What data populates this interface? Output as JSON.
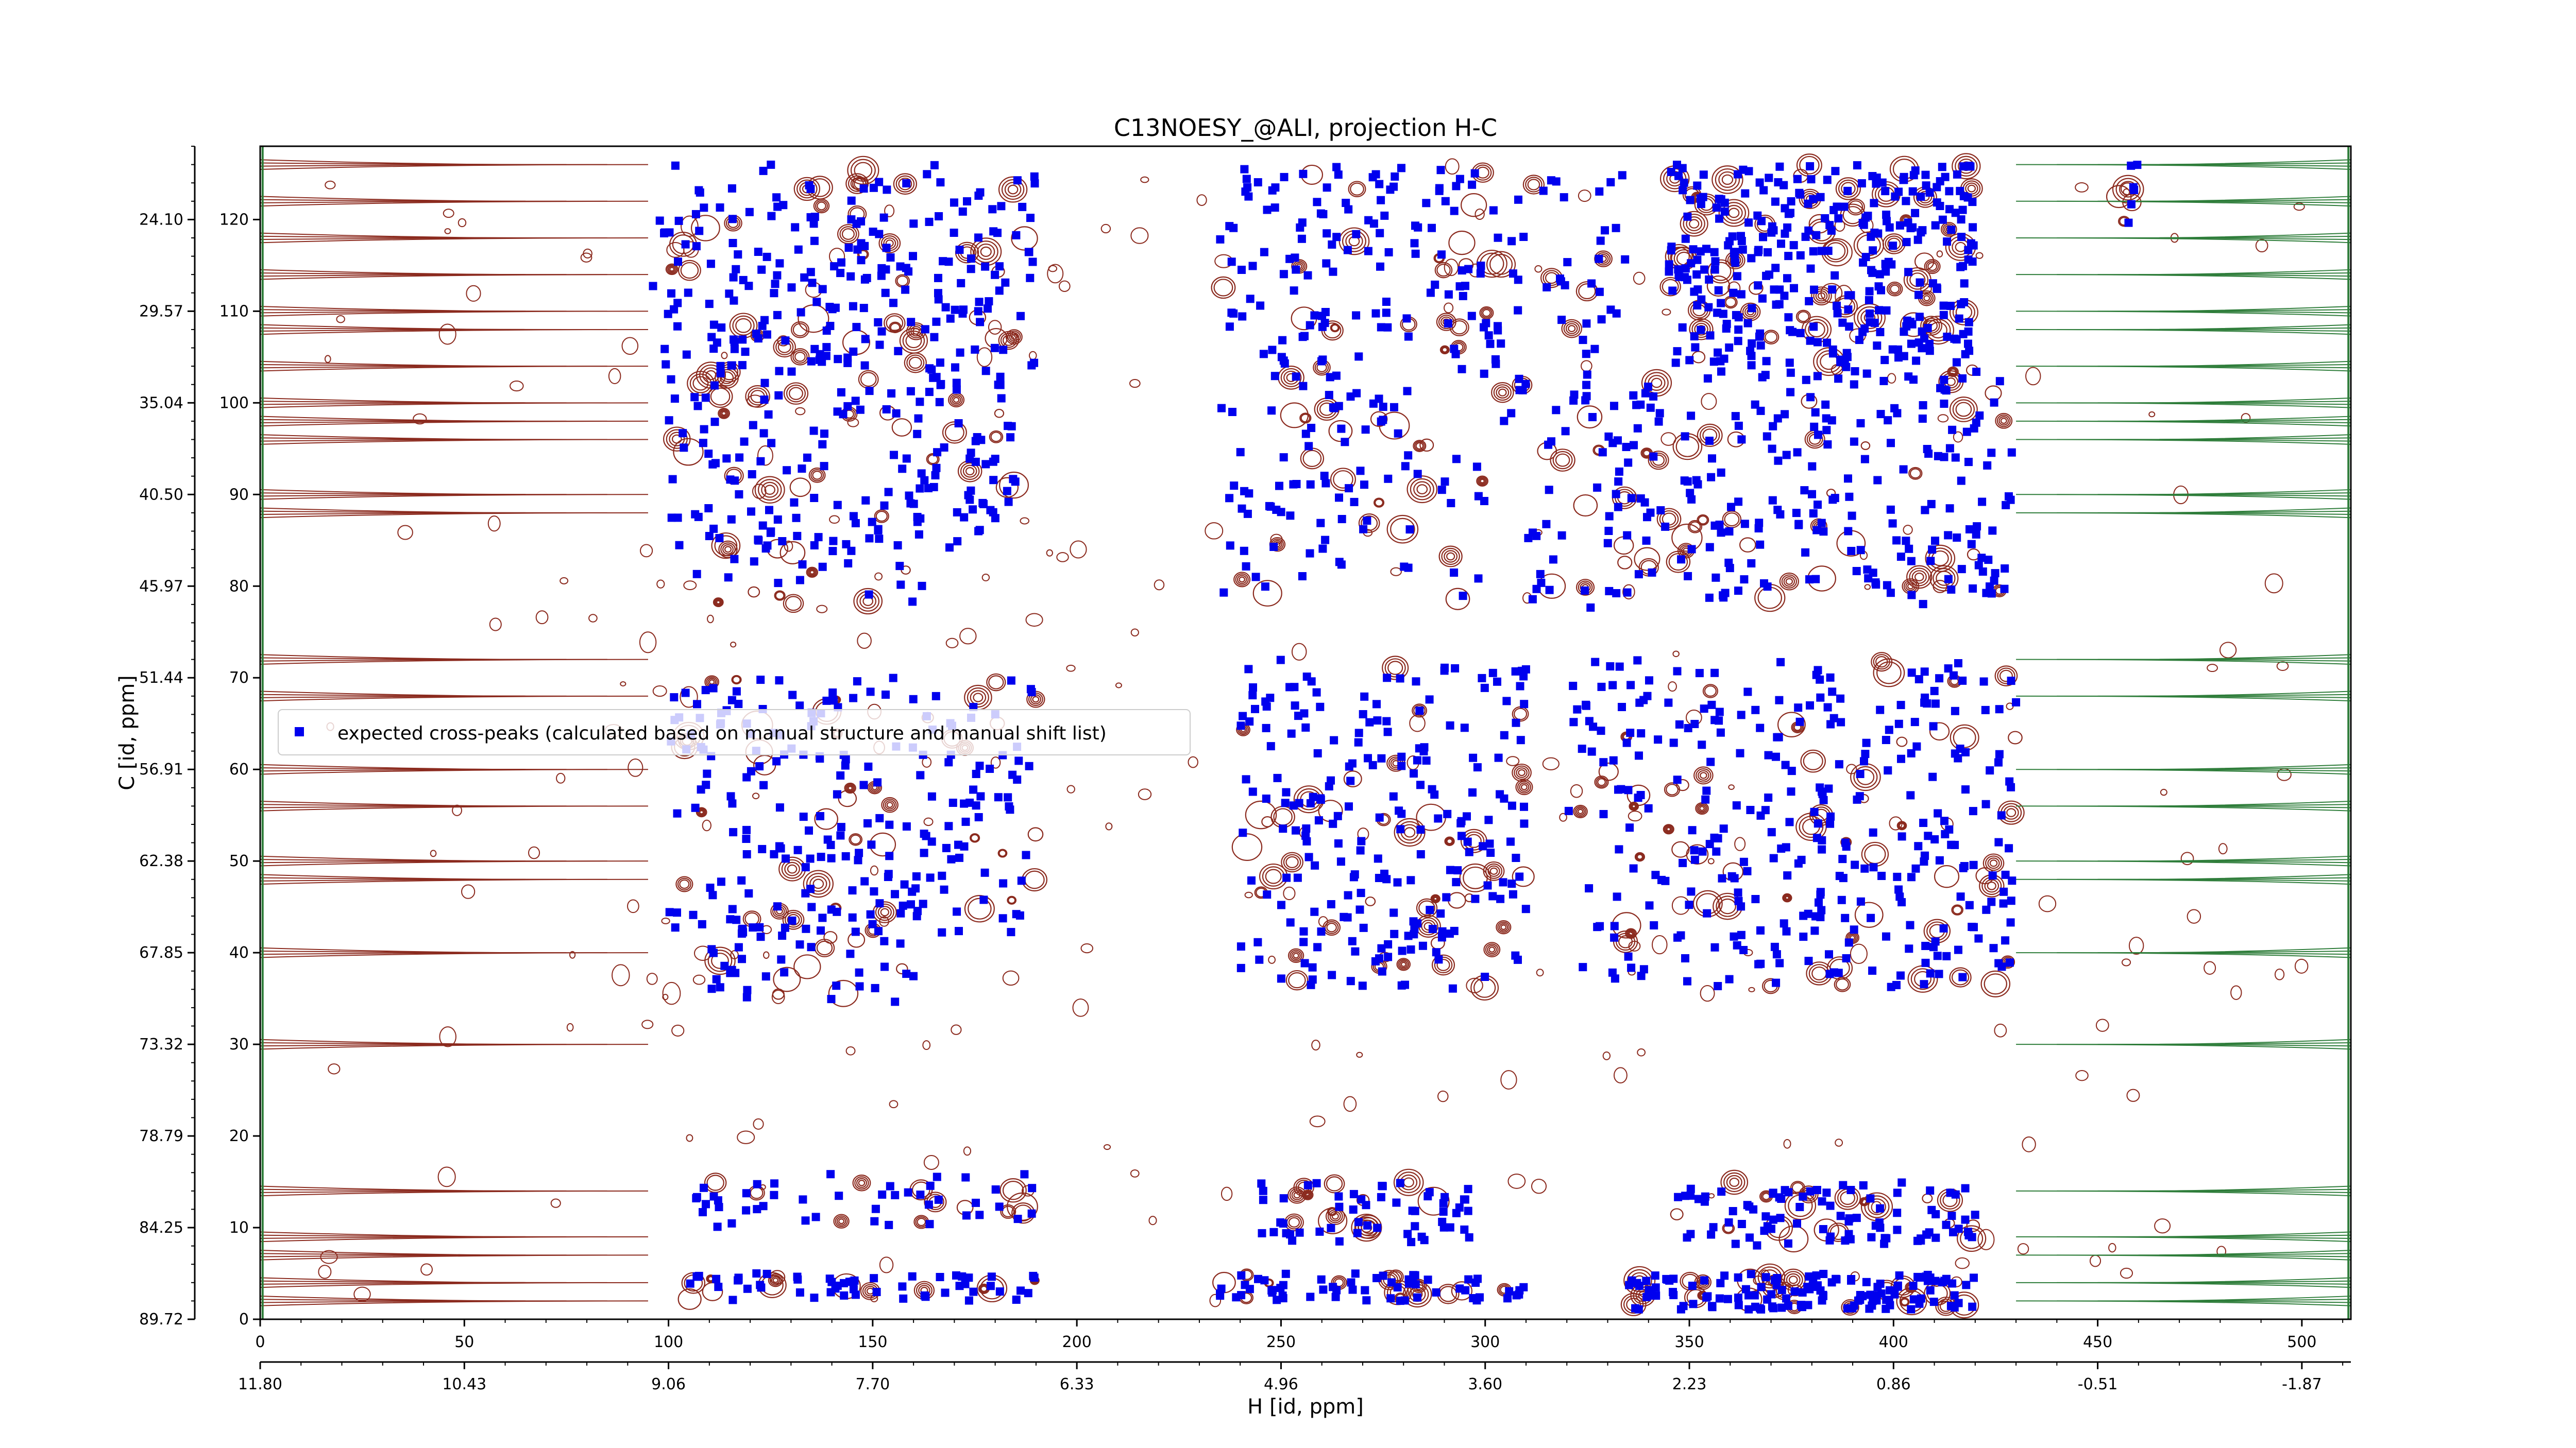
{
  "chart_data": {
    "type": "scatter",
    "title": "C13NOESY_@ALI, projection H-C",
    "xlabel": "H [id, ppm]",
    "ylabel": "C [id, ppm]",
    "x_index_range": [
      0,
      512
    ],
    "y_index_range": [
      0,
      128
    ],
    "x_ticks": [
      0,
      50,
      100,
      150,
      200,
      250,
      300,
      350,
      400,
      450,
      500
    ],
    "y_ticks": [
      0,
      10,
      20,
      30,
      40,
      50,
      60,
      70,
      80,
      90,
      100,
      110,
      120
    ],
    "h_ppm_ticks": [
      "11.80",
      "10.43",
      "9.06",
      "7.70",
      "6.33",
      "4.96",
      "3.60",
      "2.23",
      "0.86",
      "-0.51",
      "-1.87"
    ],
    "c_ppm_ticks": [
      "89.72",
      "84.25",
      "78.79",
      "73.32",
      "67.85",
      "62.38",
      "56.91",
      "51.44",
      "45.97",
      "40.50",
      "35.04",
      "29.57",
      "24.10"
    ],
    "legend": {
      "label": "expected cross-peaks (calculated based on manual structure and manual shift list)",
      "location": "center-left"
    },
    "colors": {
      "peaks": "#0000ee",
      "contour_positive": "#8b2a1e",
      "contour_negative": "#2e7d3a"
    },
    "series": [
      {
        "name": "expected cross-peaks (calculated based on manual structure and manual shift list)",
        "clusters": [
          {
            "x": [
              96,
              190
            ],
            "y": [
              104,
              126
            ],
            "n": 210
          },
          {
            "x": [
              100,
              185
            ],
            "y": [
              84,
              104
            ],
            "n": 150
          },
          {
            "x": [
              105,
              165
            ],
            "y": [
              78,
              88
            ],
            "n": 30
          },
          {
            "x": [
              100,
              190
            ],
            "y": [
              42,
              70
            ],
            "n": 210
          },
          {
            "x": [
              110,
              160
            ],
            "y": [
              34,
              44
            ],
            "n": 40
          },
          {
            "x": [
              105,
              190
            ],
            "y": [
              10,
              16
            ],
            "n": 45
          },
          {
            "x": [
              105,
              190
            ],
            "y": [
              2,
              5
            ],
            "n": 55
          },
          {
            "x": [
              235,
              310
            ],
            "y": [
              96,
              126
            ],
            "n": 170
          },
          {
            "x": [
              235,
              300
            ],
            "y": [
              78,
              96
            ],
            "n": 60
          },
          {
            "x": [
              240,
              310
            ],
            "y": [
              36,
              72
            ],
            "n": 220
          },
          {
            "x": [
              245,
              300
            ],
            "y": [
              8,
              15
            ],
            "n": 55
          },
          {
            "x": [
              235,
              310
            ],
            "y": [
              2,
              5
            ],
            "n": 60
          },
          {
            "x": [
              310,
              335
            ],
            "y": [
              74,
              126
            ],
            "n": 60
          },
          {
            "x": [
              345,
              420
            ],
            "y": [
              104,
              126
            ],
            "n": 330
          },
          {
            "x": [
              330,
              430
            ],
            "y": [
              78,
              104
            ],
            "n": 220
          },
          {
            "x": [
              320,
              430
            ],
            "y": [
              36,
              72
            ],
            "n": 320
          },
          {
            "x": [
              345,
              420
            ],
            "y": [
              8,
              15
            ],
            "n": 90
          },
          {
            "x": [
              335,
              420
            ],
            "y": [
              1,
              5
            ],
            "n": 130
          },
          {
            "x": [
              455,
              460
            ],
            "y": [
              118,
              126
            ],
            "n": 6
          }
        ]
      }
    ]
  }
}
